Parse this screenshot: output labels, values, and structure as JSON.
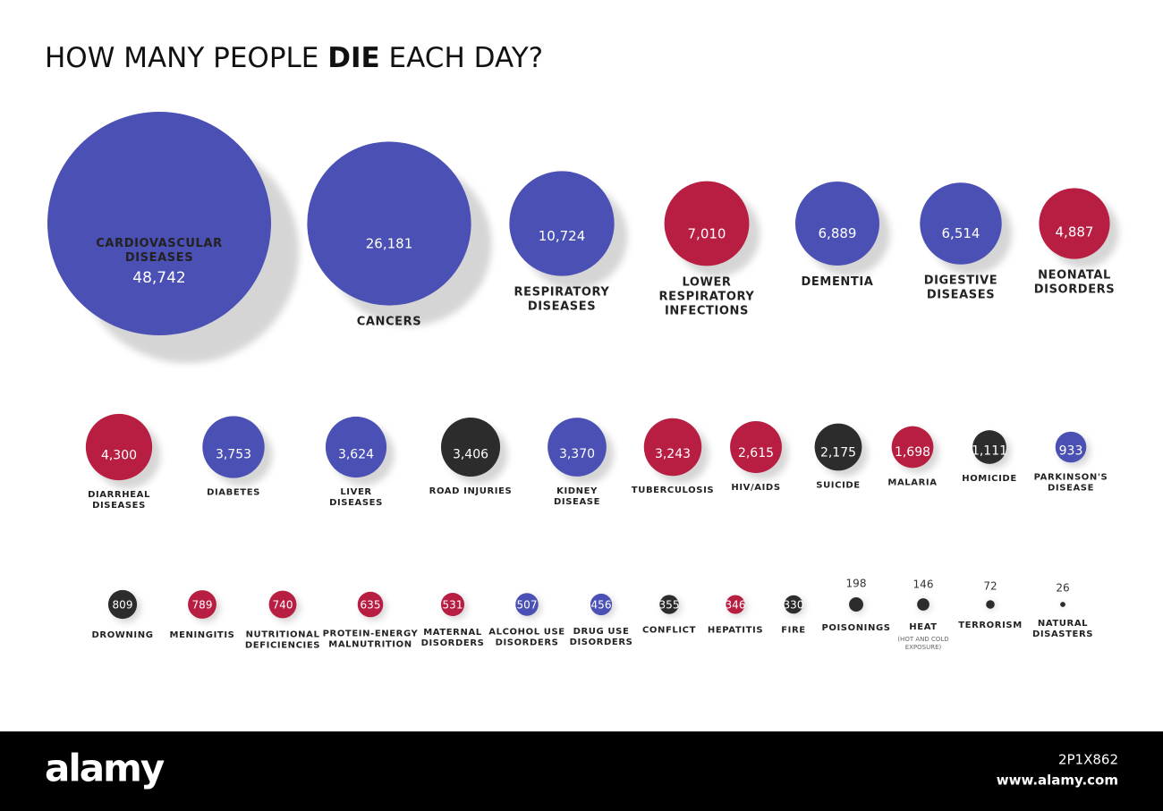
{
  "chart_data": {
    "type": "bubble",
    "title_parts": [
      "HOW MANY PEOPLE ",
      "DIE",
      " EACH DAY?"
    ],
    "categories": [
      "CARDIOVASCULAR DISEASES",
      "CANCERS",
      "RESPIRATORY DISEASES",
      "LOWER RESPIRATORY INFECTIONS",
      "DEMENTIA",
      "DIGESTIVE DISEASES",
      "NEONATAL DISORDERS",
      "DIARRHEAL DISEASES",
      "DIABETES",
      "LIVER DISEASES",
      "ROAD INJURIES",
      "KIDNEY DISEASE",
      "TUBERCULOSIS",
      "HIV/AIDS",
      "SUICIDE",
      "MALARIA",
      "HOMICIDE",
      "PARKINSON'S DISEASE",
      "DROWNING",
      "MENINGITIS",
      "NUTRITIONAL DEFICIENCIES",
      "PROTEIN-ENERGY MALNUTRITION",
      "MATERNAL DISORDERS",
      "ALCOHOL USE DISORDERS",
      "DRUG USE DISORDERS",
      "CONFLICT",
      "HEPATITIS",
      "FIRE",
      "POISONINGS",
      "HEAT",
      "TERRORISM",
      "NATURAL DISASTERS"
    ],
    "values": [
      48742,
      26181,
      10724,
      7010,
      6889,
      6514,
      4887,
      4300,
      3753,
      3624,
      3406,
      3370,
      3243,
      2615,
      2175,
      1698,
      1111,
      933,
      809,
      789,
      740,
      635,
      531,
      507,
      456,
      355,
      346,
      330,
      198,
      146,
      72,
      26
    ],
    "value_labels": [
      "48,742",
      "26,181",
      "10,724",
      "7,010",
      "6,889",
      "6,514",
      "4,887",
      "4,300",
      "3,753",
      "3,624",
      "3,406",
      "3,370",
      "3,243",
      "2,615",
      "2,175",
      "1,698",
      "1,111",
      "933",
      "809",
      "789",
      "740",
      "635",
      "531",
      "507",
      "456",
      "355",
      "346",
      "330",
      "198",
      "146",
      "72",
      "26"
    ],
    "colors": [
      "#4a50b4",
      "#4a50b4",
      "#4a50b4",
      "#b81e42",
      "#4a50b4",
      "#4a50b4",
      "#b81e42",
      "#b81e42",
      "#4a50b4",
      "#4a50b4",
      "#2c2c2c",
      "#4a50b4",
      "#b81e42",
      "#b81e42",
      "#2c2c2c",
      "#b81e42",
      "#2c2c2c",
      "#4a50b4",
      "#2c2c2c",
      "#b81e42",
      "#b81e42",
      "#b81e42",
      "#b81e42",
      "#4a50b4",
      "#4a50b4",
      "#2c2c2c",
      "#b81e42",
      "#2c2c2c",
      "#2c2c2c",
      "#2c2c2c",
      "#2c2c2c",
      "#2c2c2c"
    ],
    "annotations": [
      {
        "text": "(HOT AND COLD EXPOSURE)",
        "category": 29
      }
    ]
  },
  "footer": {
    "logo": "alamy",
    "id": "2P1X862",
    "url": "www.alamy.com"
  }
}
